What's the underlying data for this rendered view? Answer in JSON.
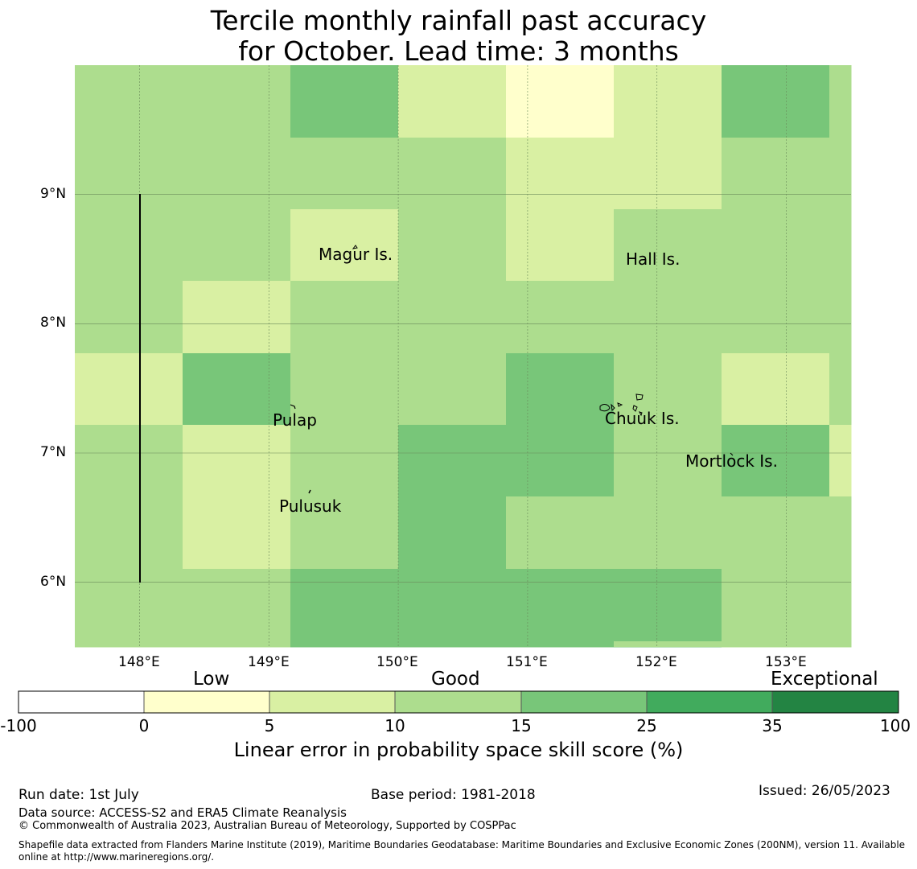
{
  "title_line1": "Tercile monthly rainfall past accuracy",
  "title_line2": "for October. Lead time: 3 months",
  "map": {
    "lon_range": [
      147.5,
      153.5
    ],
    "lat_range": [
      5.5,
      10.0
    ],
    "lon_ticks": [
      148,
      149,
      150,
      151,
      152,
      153
    ],
    "lat_ticks": [
      6,
      7,
      8,
      9
    ],
    "lon_tick_labels": [
      "148°E",
      "149°E",
      "150°E",
      "151°E",
      "152°E",
      "153°E"
    ],
    "lat_tick_labels": [
      "6°N",
      "7°N",
      "8°N",
      "9°N"
    ],
    "grid_cell_deg": 0.833,
    "cell_grid_rows_top_to_bottom": [
      [
        2,
        2,
        3,
        1,
        0,
        1,
        3,
        2
      ],
      [
        2,
        2,
        2,
        2,
        1,
        1,
        2,
        2
      ],
      [
        2,
        2,
        1,
        2,
        1,
        2,
        2,
        2
      ],
      [
        2,
        1,
        2,
        2,
        2,
        2,
        2,
        2
      ],
      [
        1,
        3,
        2,
        2,
        3,
        2,
        1,
        2
      ],
      [
        2,
        1,
        2,
        3,
        3,
        2,
        3,
        1
      ],
      [
        2,
        1,
        2,
        3,
        2,
        2,
        2,
        2
      ],
      [
        2,
        2,
        3,
        3,
        3,
        3,
        2,
        2
      ]
    ],
    "islands": [
      {
        "name": "Magur Is.",
        "lon": 149.6,
        "lat": 8.55
      },
      {
        "name": "Hall Is.",
        "lon": 151.7,
        "lat": 8.5
      },
      {
        "name": "Pulap",
        "lon": 149.2,
        "lat": 7.25
      },
      {
        "name": "Chuuk Is.",
        "lon": 151.6,
        "lat": 7.25
      },
      {
        "name": "Mortlock Is.",
        "lon": 152.6,
        "lat": 6.92
      },
      {
        "name": "Pulusuk",
        "lon": 149.3,
        "lat": 6.6
      }
    ]
  },
  "colorbar": {
    "categories": [
      "Low",
      "Good",
      "Exceptional"
    ],
    "ticks": [
      "-100",
      "0",
      "5",
      "10",
      "15",
      "25",
      "35",
      "100"
    ],
    "colors": [
      "#ffffff",
      "#ffffcc",
      "#d9f0a3",
      "#addd8e",
      "#78c679",
      "#41ab5d",
      "#238443"
    ],
    "label": "Linear error in probability space skill score (%)"
  },
  "footer": {
    "run_date": "Run date: 1st July",
    "base_period": "Base period: 1981-2018",
    "issued": "Issued: 26/05/2023",
    "data_source": "Data source: ACCESS-S2 and ERA5 Climate Reanalysis",
    "copyright": "© Commonwealth of Australia 2023, Australian Bureau of Meteorology, Supported by COSPPac",
    "shapefile_line1": "Shapefile data extracted from Flanders Marine Institute (2019), Maritime Boundaries Geodatabase: Maritime Boundaries and Exclusive Economic Zones (200NM), version 11. Available",
    "shapefile_line2": "online at http://www.marineregions.org/."
  }
}
